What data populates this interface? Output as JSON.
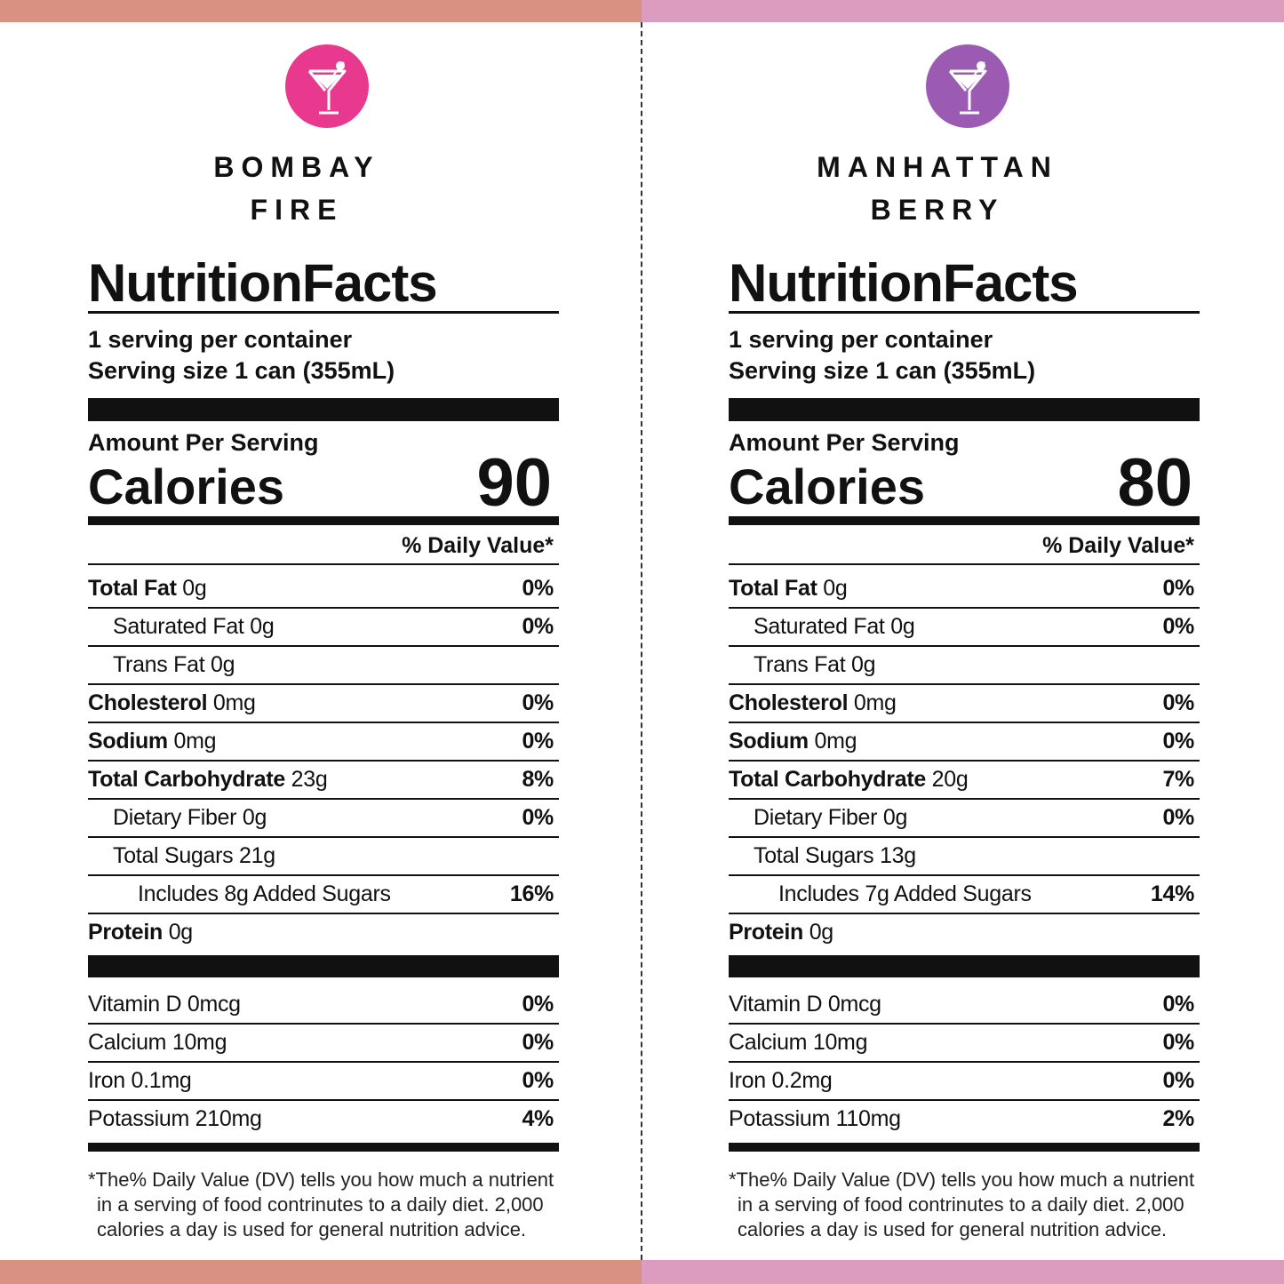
{
  "panels": [
    {
      "name_lines": [
        "BOMBAY",
        "FIRE"
      ],
      "color": "#e8398e",
      "title": "NutritionFacts",
      "servings": "1 serving per container",
      "serving_size": "Serving size 1 can (355mL)",
      "amount_per_serving": "Amount Per Serving",
      "calories_label": "Calories",
      "calories": 90,
      "dv_header": "% Daily Value*",
      "rows": [
        {
          "label": "Total Fat",
          "amount": "0g",
          "dv": "0%",
          "sub": [
            {
              "text": "Saturated Fat 0g",
              "dv": "0%"
            },
            {
              "text": "Trans Fat 0g"
            }
          ]
        },
        {
          "label": "Cholesterol",
          "amount": "0mg",
          "dv": "0%"
        },
        {
          "label": "Sodium",
          "amount": "0mg",
          "dv": "0%"
        },
        {
          "label": "Total Carbohydrate",
          "amount": "23g",
          "dv": "8%",
          "sub": [
            {
              "text": "Dietary Fiber 0g",
              "dv": "0%"
            },
            {
              "text": "Total Sugars 21g",
              "sub": [
                {
                  "text": "Includes 8g Added Sugars",
                  "dv": "16%"
                }
              ]
            }
          ]
        },
        {
          "label": "Protein",
          "amount": "0g"
        }
      ],
      "vitamins": [
        {
          "text": "Vitamin D 0mcg",
          "dv": "0%"
        },
        {
          "text": "Calcium 10mg",
          "dv": "0%"
        },
        {
          "text": "Iron 0.1mg",
          "dv": "0%"
        },
        {
          "text": "Potassium 210mg",
          "dv": "4%"
        }
      ],
      "footnote": [
        "*The% Daily Value (DV) tells you how much a nutrient",
        "in a serving of food contrinutes to a daily diet. 2,000",
        "calories a day is used for general nutrition advice."
      ]
    },
    {
      "name_lines": [
        "MANHATTAN",
        "BERRY"
      ],
      "color": "#9b5bb3",
      "title": "NutritionFacts",
      "servings": "1 serving per container",
      "serving_size": "Serving size 1 can (355mL)",
      "amount_per_serving": "Amount Per Serving",
      "calories_label": "Calories",
      "calories": 80,
      "dv_header": "% Daily Value*",
      "rows": [
        {
          "label": "Total Fat",
          "amount": "0g",
          "dv": "0%",
          "sub": [
            {
              "text": "Saturated Fat 0g",
              "dv": "0%"
            },
            {
              "text": "Trans Fat 0g"
            }
          ]
        },
        {
          "label": "Cholesterol",
          "amount": "0mg",
          "dv": "0%"
        },
        {
          "label": "Sodium",
          "amount": "0mg",
          "dv": "0%"
        },
        {
          "label": "Total Carbohydrate",
          "amount": "20g",
          "dv": "7%",
          "sub": [
            {
              "text": "Dietary Fiber 0g",
              "dv": "0%"
            },
            {
              "text": "Total Sugars 13g",
              "sub": [
                {
                  "text": "Includes 7g Added Sugars",
                  "dv": "14%"
                }
              ]
            }
          ]
        },
        {
          "label": "Protein",
          "amount": "0g"
        }
      ],
      "vitamins": [
        {
          "text": "Vitamin D 0mcg",
          "dv": "0%"
        },
        {
          "text": "Calcium 10mg",
          "dv": "0%"
        },
        {
          "text": "Iron 0.2mg",
          "dv": "0%"
        },
        {
          "text": "Potassium 110mg",
          "dv": "2%"
        }
      ],
      "footnote": [
        "*The% Daily Value (DV) tells you how much a nutrient",
        "in a serving of food contrinutes to a daily diet. 2,000",
        "calories a day is used for general nutrition advice."
      ]
    }
  ]
}
